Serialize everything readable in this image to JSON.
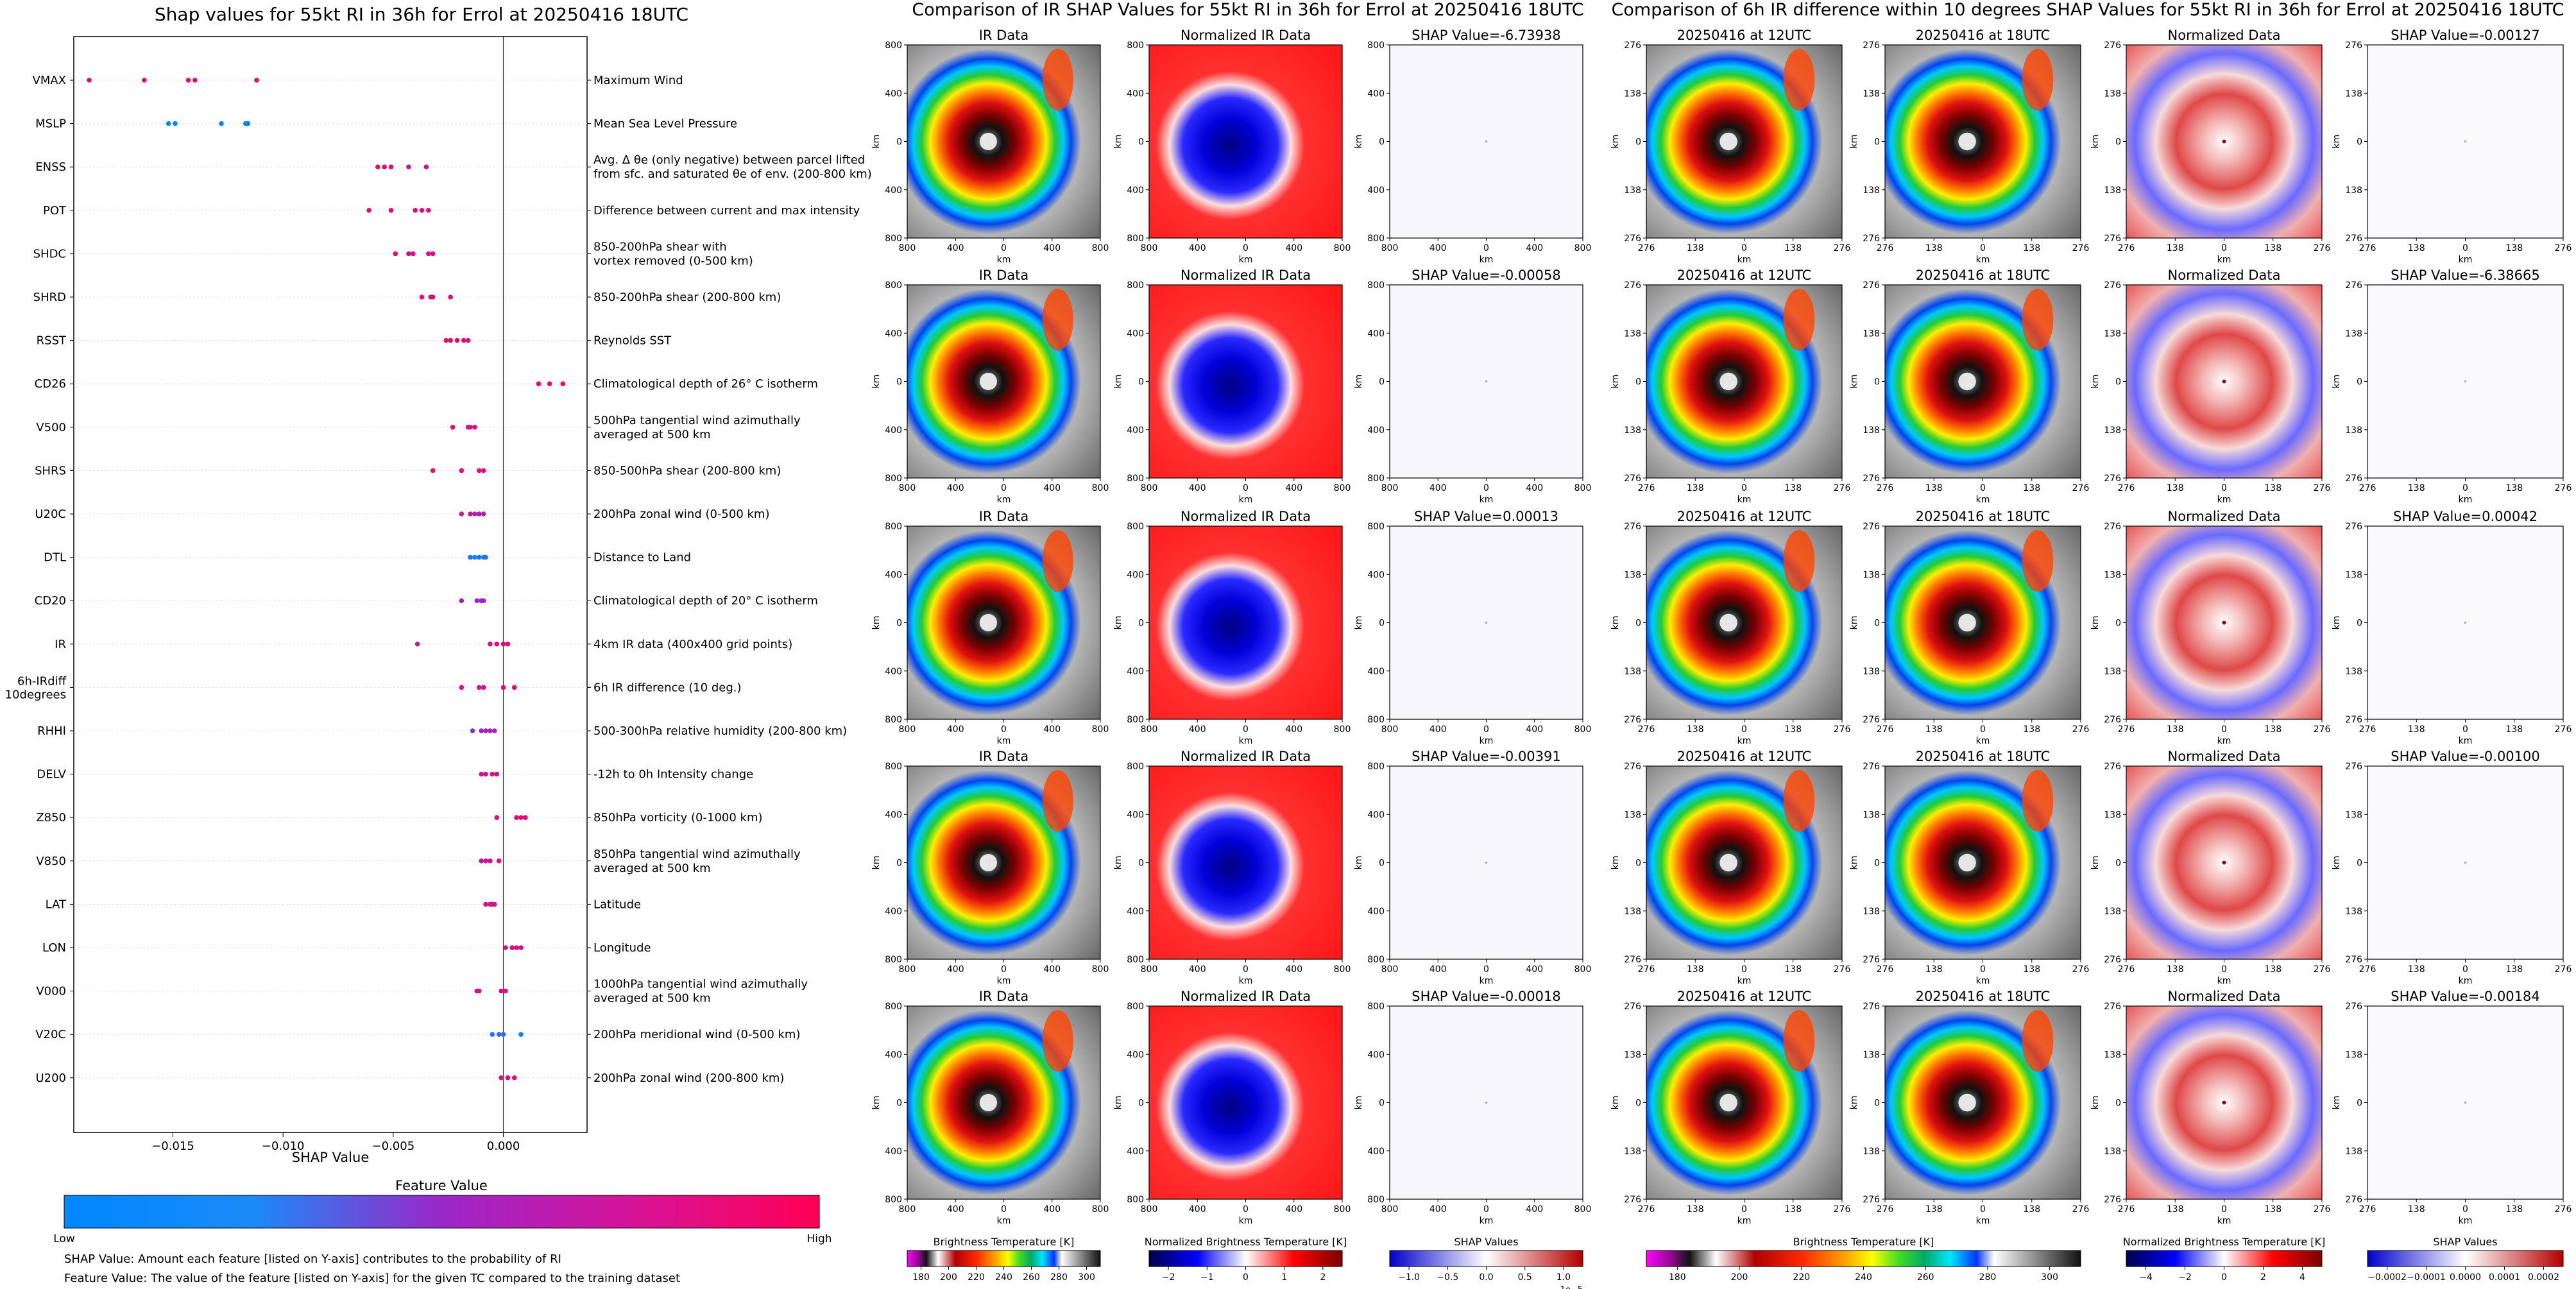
{
  "left_panel": {
    "title": "Shap values for 55kt RI in 36h for Errol at 20250416 18UTC",
    "xlabel": "SHAP Value",
    "colorbar_title": "Feature Value",
    "colorbar_low": "Low",
    "colorbar_high": "High",
    "note_1": "SHAP Value: Amount each feature [listed on Y-axis] contributes to the probability of RI",
    "note_2": "Feature Value: The value of the feature [listed on Y-axis] for the given TC compared to the training dataset"
  },
  "chart_data": {
    "type": "scatter",
    "title": "Shap values for 55kt RI in 36h for Errol at 20250416 18UTC",
    "xlabel": "SHAP Value",
    "xlim": [
      -0.0195,
      0.0038
    ],
    "xticks": [
      -0.015,
      -0.01,
      -0.005,
      0.0
    ],
    "xtick_labels": [
      "−0.015",
      "−0.010",
      "−0.005",
      "0.000"
    ],
    "colors": {
      "low": "#0088ff",
      "mid": "#9b27c9",
      "high": "#ff0055"
    },
    "features": [
      {
        "name": "VMAX",
        "desc": [
          "Maximum Wind"
        ],
        "points": [
          [
            -0.0188,
            0.9
          ],
          [
            -0.0163,
            0.9
          ],
          [
            -0.0143,
            0.9
          ],
          [
            -0.014,
            0.9
          ],
          [
            -0.0112,
            0.95
          ]
        ]
      },
      {
        "name": "MSLP",
        "desc": [
          "Mean Sea Level Pressure"
        ],
        "points": [
          [
            -0.0152,
            0.0
          ],
          [
            -0.0149,
            0.0
          ],
          [
            -0.0128,
            0.05
          ],
          [
            -0.0117,
            0.0
          ],
          [
            -0.0116,
            0.05
          ]
        ]
      },
      {
        "name": "ENSS",
        "desc": [
          "Avg. Δ θe (only negative) between parcel lifted",
          "from sfc. and saturated θe of env. (200-800 km)"
        ],
        "points": [
          [
            -0.0057,
            0.85
          ],
          [
            -0.0054,
            0.85
          ],
          [
            -0.0051,
            0.9
          ],
          [
            -0.0043,
            0.7
          ],
          [
            -0.0035,
            0.8
          ]
        ]
      },
      {
        "name": "POT",
        "desc": [
          "Difference between current and max intensity"
        ],
        "points": [
          [
            -0.0061,
            0.85
          ],
          [
            -0.0051,
            0.9
          ],
          [
            -0.004,
            0.8
          ],
          [
            -0.0037,
            0.85
          ],
          [
            -0.0034,
            0.85
          ]
        ]
      },
      {
        "name": "SHDC",
        "desc": [
          "850-200hPa shear with",
          "vortex removed (0-500 km)"
        ],
        "points": [
          [
            -0.0049,
            0.85
          ],
          [
            -0.0043,
            0.8
          ],
          [
            -0.0041,
            0.85
          ],
          [
            -0.0034,
            0.8
          ],
          [
            -0.0032,
            0.85
          ]
        ]
      },
      {
        "name": "SHRD",
        "desc": [
          "850-200hPa shear (200-800 km)"
        ],
        "points": [
          [
            -0.0037,
            0.85
          ],
          [
            -0.0033,
            0.85
          ],
          [
            -0.0032,
            0.8
          ],
          [
            -0.0024,
            0.85
          ]
        ]
      },
      {
        "name": "RSST",
        "desc": [
          "Reynolds SST"
        ],
        "points": [
          [
            -0.0026,
            0.85
          ],
          [
            -0.0024,
            0.9
          ],
          [
            -0.0021,
            0.85
          ],
          [
            -0.0018,
            0.85
          ],
          [
            -0.0016,
            0.8
          ]
        ]
      },
      {
        "name": "CD26",
        "desc": [
          "Climatological depth of 26° C isotherm"
        ],
        "points": [
          [
            0.0016,
            0.9
          ],
          [
            0.0021,
            0.9
          ],
          [
            0.0027,
            0.95
          ]
        ]
      },
      {
        "name": "V500",
        "desc": [
          "500hPa tangential wind azimuthally",
          "averaged at 500 km"
        ],
        "points": [
          [
            -0.0023,
            0.85
          ],
          [
            -0.0016,
            0.85
          ],
          [
            -0.0015,
            0.8
          ],
          [
            -0.0013,
            0.85
          ]
        ]
      },
      {
        "name": "SHRS",
        "desc": [
          "850-500hPa shear (200-800 km)"
        ],
        "points": [
          [
            -0.0032,
            0.85
          ],
          [
            -0.0019,
            0.85
          ],
          [
            -0.0011,
            0.85
          ],
          [
            -0.0009,
            0.8
          ]
        ]
      },
      {
        "name": "U20C",
        "desc": [
          "200hPa zonal wind (0-500 km)"
        ],
        "points": [
          [
            -0.0019,
            0.7
          ],
          [
            -0.0015,
            0.7
          ],
          [
            -0.0013,
            0.6
          ],
          [
            -0.0011,
            0.7
          ],
          [
            -0.0009,
            0.55
          ]
        ]
      },
      {
        "name": "DTL",
        "desc": [
          "Distance to Land"
        ],
        "points": [
          [
            -0.0015,
            0.1
          ],
          [
            -0.0013,
            0.05
          ],
          [
            -0.0011,
            0.1
          ],
          [
            -0.0009,
            0.05
          ],
          [
            -0.0008,
            0.1
          ]
        ]
      },
      {
        "name": "CD20",
        "desc": [
          "Climatological depth of 20° C isotherm"
        ],
        "points": [
          [
            -0.0019,
            0.55
          ],
          [
            -0.0012,
            0.5
          ],
          [
            -0.001,
            0.5
          ],
          [
            -0.0009,
            0.55
          ]
        ]
      },
      {
        "name": "IR",
        "desc": [
          "4km IR data (400x400 grid points)"
        ],
        "points": [
          [
            -0.0039,
            0.6
          ],
          [
            -0.0006,
            0.85
          ],
          [
            -0.0003,
            0.85
          ],
          [
            0.0,
            0.85
          ],
          [
            0.0002,
            0.9
          ]
        ]
      },
      {
        "name": "6h-IRdiff 10degrees",
        "desc": [
          "6h IR difference (10 deg.)"
        ],
        "points": [
          [
            -0.0019,
            0.8
          ],
          [
            -0.0011,
            0.75
          ],
          [
            -0.0009,
            0.8
          ],
          [
            0.0,
            0.85
          ],
          [
            0.0005,
            0.9
          ]
        ]
      },
      {
        "name": "RHHI",
        "desc": [
          "500-300hPa relative humidity (200-800 km)"
        ],
        "points": [
          [
            -0.0014,
            0.45
          ],
          [
            -0.001,
            0.55
          ],
          [
            -0.0008,
            0.55
          ],
          [
            -0.0006,
            0.6
          ],
          [
            -0.0004,
            0.55
          ]
        ]
      },
      {
        "name": "DELV",
        "desc": [
          "-12h to 0h Intensity change"
        ],
        "points": [
          [
            -0.001,
            0.75
          ],
          [
            -0.0008,
            0.75
          ],
          [
            -0.0005,
            0.8
          ],
          [
            -0.0003,
            0.75
          ]
        ]
      },
      {
        "name": "Z850",
        "desc": [
          "850hPa vorticity (0-1000 km)"
        ],
        "points": [
          [
            -0.0003,
            0.9
          ],
          [
            0.0006,
            0.9
          ],
          [
            0.0008,
            0.85
          ],
          [
            0.001,
            0.9
          ]
        ]
      },
      {
        "name": "V850",
        "desc": [
          "850hPa tangential wind azimuthally",
          "averaged at 500 km"
        ],
        "points": [
          [
            -0.001,
            0.7
          ],
          [
            -0.0008,
            0.75
          ],
          [
            -0.0006,
            0.75
          ],
          [
            -0.0002,
            0.8
          ]
        ]
      },
      {
        "name": "LAT",
        "desc": [
          "Latitude"
        ],
        "points": [
          [
            -0.0008,
            0.75
          ],
          [
            -0.0006,
            0.75
          ],
          [
            -0.0005,
            0.8
          ],
          [
            -0.0004,
            0.75
          ]
        ]
      },
      {
        "name": "LON",
        "desc": [
          "Longitude"
        ],
        "points": [
          [
            0.0001,
            0.85
          ],
          [
            0.0004,
            0.85
          ],
          [
            0.0006,
            0.8
          ],
          [
            0.0008,
            0.85
          ]
        ]
      },
      {
        "name": "V000",
        "desc": [
          "1000hPa tangential wind azimuthally",
          "averaged at 500 km"
        ],
        "points": [
          [
            -0.0012,
            0.8
          ],
          [
            -0.0011,
            0.85
          ],
          [
            -0.0001,
            0.85
          ],
          [
            0.0001,
            0.85
          ]
        ]
      },
      {
        "name": "V20C",
        "desc": [
          "200hPa meridional wind (0-500 km)"
        ],
        "points": [
          [
            -0.0005,
            0.1
          ],
          [
            -0.0002,
            0.15
          ],
          [
            0.0,
            0.1
          ],
          [
            0.0008,
            0.05
          ]
        ]
      },
      {
        "name": "U200",
        "desc": [
          "200hPa zonal wind (200-800 km)"
        ],
        "points": [
          [
            -0.0001,
            0.85
          ],
          [
            0.0002,
            0.9
          ],
          [
            0.0005,
            0.85
          ]
        ]
      }
    ]
  },
  "middle_panel": {
    "title": "Comparison of IR SHAP Values for 55kt RI in 36h for Errol at 20250416 18UTC",
    "column_titles": [
      "IR Data",
      "Normalized IR Data"
    ],
    "shap_titles": [
      "SHAP Value=-6.73938",
      "SHAP Value=-0.00058",
      "SHAP Value=0.00013",
      "SHAP Value=-0.00391",
      "SHAP Value=-0.00018"
    ],
    "axis_label": "km",
    "yticks": [
      "800",
      "400",
      "0",
      "400",
      "800"
    ],
    "xticks": [
      "800",
      "400",
      "0",
      "400",
      "800"
    ],
    "colorbars": [
      {
        "title": "Brightness Temperature [K]",
        "ticks": [
          "180",
          "200",
          "220",
          "240",
          "260",
          "280",
          "300"
        ],
        "extra": ""
      },
      {
        "title": "Normalized Brightness Temperature [K]",
        "ticks": [
          "−2",
          "−1",
          "0",
          "1",
          "2"
        ],
        "extra": ""
      },
      {
        "title": "SHAP Values",
        "ticks": [
          "−1.0",
          "−0.5",
          "0.0",
          "0.5",
          "1.0"
        ],
        "extra": "1e−5"
      }
    ]
  },
  "right_panel": {
    "title": "Comparison of 6h IR difference within 10 degrees SHAP Values for 55kt RI in 36h for Errol at 20250416 18UTC",
    "column_titles": [
      "20250416 at 12UTC",
      "20250416 at 18UTC",
      "Normalized Data"
    ],
    "shap_titles": [
      "SHAP Value=-0.00127",
      "SHAP Value=-6.38665",
      "SHAP Value=0.00042",
      "SHAP Value=-0.00100",
      "SHAP Value=-0.00184"
    ],
    "axis_label": "km",
    "yticks": [
      "276",
      "138",
      "0",
      "138",
      "276"
    ],
    "xticks": [
      "276",
      "138",
      "0",
      "138",
      "276"
    ],
    "colorbars": [
      {
        "title": "Brightness Temperature [K]",
        "ticks": [
          "180",
          "200",
          "220",
          "240",
          "260",
          "280",
          "300"
        ],
        "extra": ""
      },
      {
        "title": "Normalized Brightness Temperature [K]",
        "ticks": [
          "−4",
          "−2",
          "0",
          "2",
          "4"
        ],
        "extra": ""
      },
      {
        "title": "SHAP Values",
        "ticks": [
          "−0.0002",
          "−0.0001",
          "0.0000",
          "0.0001",
          "0.0002"
        ],
        "extra": ""
      }
    ]
  }
}
